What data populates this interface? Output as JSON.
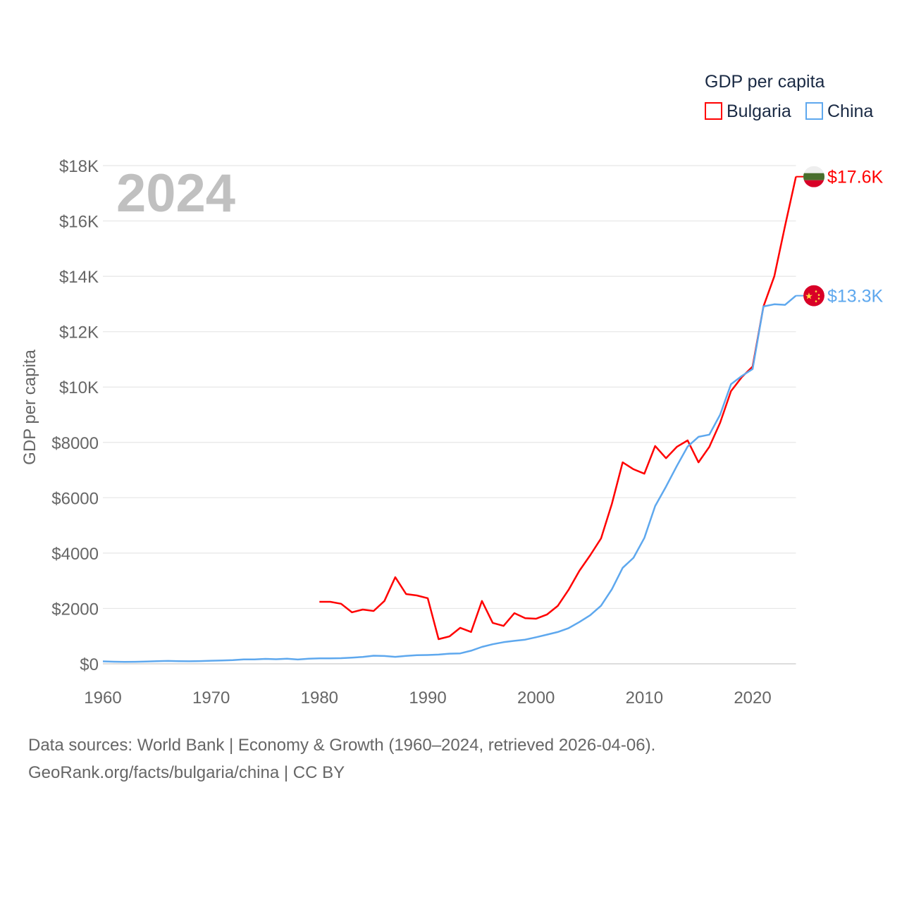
{
  "chart_data": {
    "type": "line",
    "title": "GDP per capita",
    "year_label": "2024",
    "xlabel": "",
    "ylabel": "GDP per capita",
    "xlim": [
      1960,
      2024
    ],
    "ylim": [
      0,
      18000
    ],
    "grid": true,
    "legend_position": "top-right",
    "x_ticks": [
      1960,
      1970,
      1980,
      1990,
      2000,
      2010,
      2020
    ],
    "x_tick_labels": [
      "1960",
      "1970",
      "1980",
      "1990",
      "2000",
      "2010",
      "2020"
    ],
    "y_ticks": [
      0,
      2000,
      4000,
      6000,
      8000,
      10000,
      12000,
      14000,
      16000,
      18000
    ],
    "y_tick_labels": [
      "$0",
      "$2000",
      "$4000",
      "$6000",
      "$8000",
      "$10K",
      "$12K",
      "$14K",
      "$16K",
      "$18K"
    ],
    "series": [
      {
        "name": "Bulgaria",
        "color": "#ff0000",
        "end_label": "$17.6K",
        "flag": "bulgaria-flag",
        "x": [
          1980,
          1981,
          1982,
          1983,
          1984,
          1985,
          1986,
          1987,
          1988,
          1989,
          1990,
          1991,
          1992,
          1993,
          1994,
          1995,
          1996,
          1997,
          1998,
          1999,
          2000,
          2001,
          2002,
          2003,
          2004,
          2005,
          2006,
          2007,
          2008,
          2009,
          2010,
          2011,
          2012,
          2013,
          2014,
          2015,
          2016,
          2017,
          2018,
          2019,
          2020,
          2021,
          2022,
          2023,
          2024
        ],
        "values": [
          2240,
          2240,
          2170,
          1860,
          1960,
          1910,
          2270,
          3130,
          2520,
          2470,
          2370,
          890,
          990,
          1300,
          1150,
          2270,
          1480,
          1370,
          1830,
          1650,
          1630,
          1780,
          2090,
          2670,
          3360,
          3920,
          4530,
          5780,
          7280,
          7030,
          6870,
          7870,
          7430,
          7840,
          8070,
          7280,
          7840,
          8710,
          9850,
          10360,
          10740,
          12910,
          14000,
          15830,
          17600
        ]
      },
      {
        "name": "China",
        "color": "#5ea8ee",
        "end_label": "$13.3K",
        "flag": "china-flag",
        "x": [
          1960,
          1961,
          1962,
          1963,
          1964,
          1965,
          1966,
          1967,
          1968,
          1969,
          1970,
          1971,
          1972,
          1973,
          1974,
          1975,
          1976,
          1977,
          1978,
          1979,
          1980,
          1981,
          1982,
          1983,
          1984,
          1985,
          1986,
          1987,
          1988,
          1989,
          1990,
          1991,
          1992,
          1993,
          1994,
          1995,
          1996,
          1997,
          1998,
          1999,
          2000,
          2001,
          2002,
          2003,
          2004,
          2005,
          2006,
          2007,
          2008,
          2009,
          2010,
          2011,
          2012,
          2013,
          2014,
          2015,
          2016,
          2017,
          2018,
          2019,
          2020,
          2021,
          2022,
          2023,
          2024
        ],
        "values": [
          90,
          76,
          71,
          75,
          85,
          98,
          104,
          97,
          91,
          100,
          113,
          119,
          132,
          157,
          160,
          178,
          165,
          185,
          156,
          183,
          195,
          197,
          203,
          225,
          250,
          294,
          282,
          252,
          284,
          311,
          318,
          333,
          366,
          377,
          473,
          610,
          709,
          782,
          829,
          873,
          959,
          1053,
          1149,
          1289,
          1509,
          1753,
          2099,
          2694,
          3468,
          3832,
          4550,
          5700,
          6400,
          7150,
          7850,
          8200,
          8280,
          9000,
          10100,
          10400,
          10650,
          12910,
          12990,
          12970,
          13300
        ]
      }
    ]
  },
  "footer": {
    "line1": "Data sources: World Bank | Economy & Growth (1960–2024, retrieved 2026-04-06).",
    "line2": "GeoRank.org/facts/bulgaria/china | CC BY"
  }
}
